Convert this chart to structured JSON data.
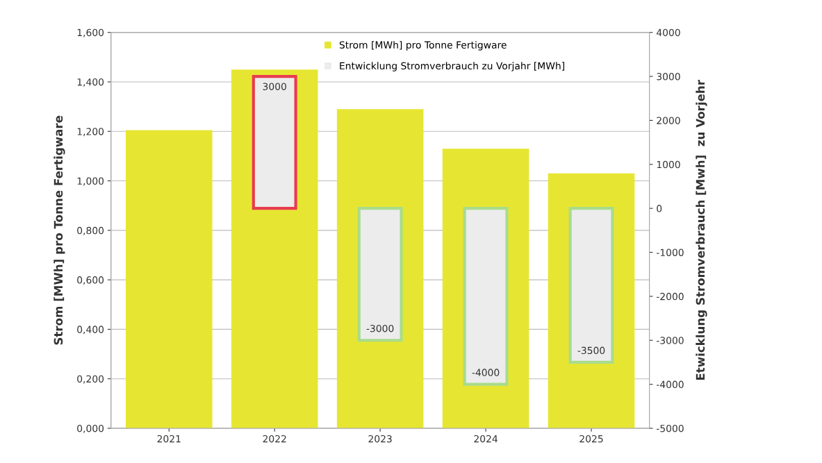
{
  "chart_data": {
    "type": "bar",
    "categories": [
      "2021",
      "2022",
      "2023",
      "2024",
      "2025"
    ],
    "ylabel": "Strom [MWh] pro Tonne Fertigware",
    "y2label": "Etwicklung Stromverbrauch [Mwh]  zu Vorjehr",
    "ylim": [
      0,
      1.6
    ],
    "yticks": [
      {
        "value": 0,
        "label": "0,000"
      },
      {
        "value": 0.2,
        "label": "0,200"
      },
      {
        "value": 0.4,
        "label": "0,400"
      },
      {
        "value": 0.6,
        "label": "0,600"
      },
      {
        "value": 0.8,
        "label": "0,800"
      },
      {
        "value": 1.0,
        "label": "1,000"
      },
      {
        "value": 1.2,
        "label": "1,200"
      },
      {
        "value": 1.4,
        "label": "1,400"
      },
      {
        "value": 1.6,
        "label": "1,600"
      }
    ],
    "y2lim": [
      -5000,
      4000
    ],
    "y2ticks": [
      -5000,
      -4000,
      -3000,
      -2000,
      -1000,
      0,
      1000,
      2000,
      3000,
      4000
    ],
    "series": [
      {
        "name": "Strom [MWh] pro Tonne Fertigware",
        "color": "#e6e632",
        "values": [
          1.205,
          1.45,
          1.29,
          1.13,
          1.03
        ]
      },
      {
        "name": "Entwicklung Stromverbrauch zu Vorjahr [MWh]",
        "color": "#ececec",
        "axis": "y2",
        "values": [
          null,
          3000,
          -3000,
          -4000,
          -3500
        ],
        "value_labels": [
          null,
          "3000",
          "-3000",
          "-4000",
          "-3500"
        ]
      }
    ],
    "grid": "y",
    "legend": "top"
  }
}
